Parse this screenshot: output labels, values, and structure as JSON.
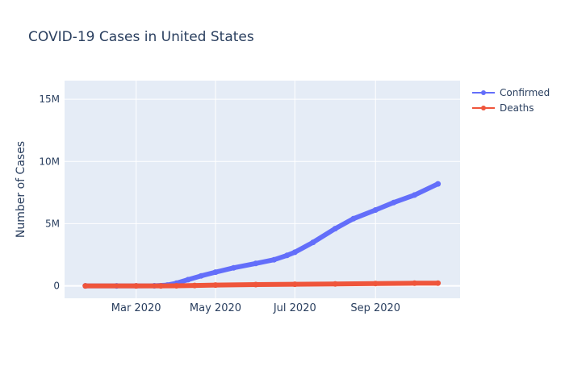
{
  "chart_data": {
    "type": "line",
    "title": "COVID-19 Cases in United States",
    "xlabel": "",
    "ylabel": "Number of Cases",
    "x_start": "2020-01-22",
    "x_end": "2020-10-19",
    "xlim": [
      "2020-01-06",
      "2020-11-05"
    ],
    "ylim": [
      -1000000,
      16500000
    ],
    "x_ticks": [
      {
        "date": "2020-03-01",
        "label": "Mar 2020"
      },
      {
        "date": "2020-05-01",
        "label": "May 2020"
      },
      {
        "date": "2020-07-01",
        "label": "Jul 2020"
      },
      {
        "date": "2020-09-01",
        "label": "Sep 2020"
      }
    ],
    "y_ticks": [
      {
        "value": 0,
        "label": "0"
      },
      {
        "value": 5000000,
        "label": "5M"
      },
      {
        "value": 10000000,
        "label": "10M"
      },
      {
        "value": 15000000,
        "label": "15M"
      }
    ],
    "grid": true,
    "legend_position": "top-right",
    "series": [
      {
        "name": "Confirmed",
        "color": "#636efa",
        "points": [
          {
            "date": "2020-01-22",
            "value": 0
          },
          {
            "date": "2020-02-15",
            "value": 15
          },
          {
            "date": "2020-03-01",
            "value": 75
          },
          {
            "date": "2020-03-15",
            "value": 3500
          },
          {
            "date": "2020-03-25",
            "value": 65000
          },
          {
            "date": "2020-04-01",
            "value": 215000
          },
          {
            "date": "2020-04-10",
            "value": 500000
          },
          {
            "date": "2020-04-20",
            "value": 800000
          },
          {
            "date": "2020-05-01",
            "value": 1100000
          },
          {
            "date": "2020-05-15",
            "value": 1450000
          },
          {
            "date": "2020-06-01",
            "value": 1800000
          },
          {
            "date": "2020-06-15",
            "value": 2100000
          },
          {
            "date": "2020-06-25",
            "value": 2450000
          },
          {
            "date": "2020-07-01",
            "value": 2700000
          },
          {
            "date": "2020-07-15",
            "value": 3500000
          },
          {
            "date": "2020-08-01",
            "value": 4600000
          },
          {
            "date": "2020-08-15",
            "value": 5400000
          },
          {
            "date": "2020-09-01",
            "value": 6100000
          },
          {
            "date": "2020-09-15",
            "value": 6700000
          },
          {
            "date": "2020-10-01",
            "value": 7300000
          },
          {
            "date": "2020-10-19",
            "value": 8200000
          }
        ]
      },
      {
        "name": "Deaths",
        "color": "#ef553b",
        "points": [
          {
            "date": "2020-01-22",
            "value": 0
          },
          {
            "date": "2020-03-01",
            "value": 1
          },
          {
            "date": "2020-03-20",
            "value": 300
          },
          {
            "date": "2020-04-01",
            "value": 6000
          },
          {
            "date": "2020-04-15",
            "value": 30000
          },
          {
            "date": "2020-05-01",
            "value": 65000
          },
          {
            "date": "2020-06-01",
            "value": 105000
          },
          {
            "date": "2020-07-01",
            "value": 130000
          },
          {
            "date": "2020-08-01",
            "value": 155000
          },
          {
            "date": "2020-09-01",
            "value": 185000
          },
          {
            "date": "2020-10-01",
            "value": 210000
          },
          {
            "date": "2020-10-19",
            "value": 220000
          }
        ]
      }
    ]
  }
}
